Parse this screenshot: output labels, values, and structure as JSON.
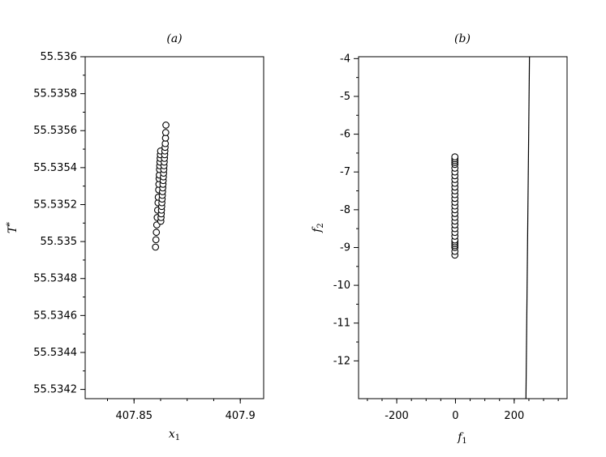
{
  "chart_data": [
    {
      "type": "scatter",
      "title": "(a)",
      "xlabel": "x",
      "xlabel_subscript": "1",
      "ylabel": "T",
      "ylabel_superscript": "*",
      "xlim": [
        407.827,
        407.911
      ],
      "ylim": [
        55.53415,
        55.536
      ],
      "xticks": [
        407.85,
        407.9
      ],
      "xtick_labels": [
        "407.85",
        "407.9"
      ],
      "yticks": [
        55.5342,
        55.5344,
        55.5346,
        55.5348,
        55.535,
        55.5352,
        55.5354,
        55.5356,
        55.5358,
        55.536
      ],
      "ytick_labels": [
        "55.5342",
        "55.5344",
        "55.5346",
        "55.5348",
        "55.535",
        "55.5352",
        "55.5354",
        "55.5356",
        "55.5358",
        "55.536"
      ],
      "series": [
        {
          "marker": "open-circle",
          "x": [
            407.8601,
            407.8603,
            407.8605,
            407.8607,
            407.8609,
            407.8611,
            407.8613,
            407.8614,
            407.8616,
            407.8617,
            407.8618,
            407.8619,
            407.862,
            407.8621,
            407.8622,
            407.8623,
            407.8624,
            407.8625,
            407.8626,
            407.8627,
            407.8628,
            407.8629,
            407.863,
            407.8631,
            407.8632,
            407.8633,
            407.8634,
            407.8635,
            407.8636,
            407.8637,
            407.8638,
            407.8639,
            407.864,
            407.8641,
            407.8642,
            407.8643,
            407.8644,
            407.8645,
            407.8646,
            407.8647,
            407.8648,
            407.8649,
            407.865
          ],
          "y": [
            55.53497,
            55.53501,
            55.53505,
            55.53509,
            55.53513,
            55.53517,
            55.53521,
            55.53524,
            55.53528,
            55.53531,
            55.53534,
            55.53536,
            55.53539,
            55.53541,
            55.53543,
            55.53545,
            55.53547,
            55.53549,
            55.53511,
            55.53513,
            55.53515,
            55.53517,
            55.53519,
            55.53521,
            55.53523,
            55.53525,
            55.53527,
            55.53529,
            55.53531,
            55.53533,
            55.53535,
            55.53537,
            55.53539,
            55.53541,
            55.53543,
            55.53545,
            55.53547,
            55.53549,
            55.53551,
            55.53553,
            55.53556,
            55.53559,
            55.53563
          ]
        }
      ]
    },
    {
      "type": "scatter",
      "title": "(b)",
      "xlabel": "f",
      "xlabel_subscript": "1",
      "ylabel": "f",
      "ylabel_subscript": "2",
      "xlim": [
        -330,
        380
      ],
      "ylim": [
        -13.0,
        -3.95
      ],
      "xticks": [
        -200,
        0,
        200
      ],
      "xtick_labels": [
        "-200",
        "0",
        "200"
      ],
      "yticks": [
        -12,
        -11,
        -10,
        -9,
        -8,
        -7,
        -6,
        -5,
        -4
      ],
      "ytick_labels": [
        "-12",
        "-11",
        "-10",
        "-9",
        "-8",
        "-7",
        "-6",
        "-5",
        "-4"
      ],
      "line": {
        "x": [
          240,
          252
        ],
        "y": [
          -13.0,
          -3.95
        ]
      },
      "series": [
        {
          "marker": "open-circle",
          "x": [
            -2,
            -2,
            -2,
            -2,
            -2,
            -2,
            -2,
            -2,
            -2,
            -2,
            -2,
            -2,
            -2,
            -2,
            -2,
            -2,
            -2,
            -2,
            -2,
            -2,
            -2,
            -2,
            -2,
            -2,
            -2,
            -2,
            -2,
            -2,
            -2,
            -2,
            -2
          ],
          "y": [
            -9.2,
            -9.1,
            -9.0,
            -8.95,
            -8.9,
            -8.85,
            -8.8,
            -8.7,
            -8.6,
            -8.5,
            -8.4,
            -8.3,
            -8.2,
            -8.1,
            -8.0,
            -7.9,
            -7.8,
            -7.7,
            -7.6,
            -7.5,
            -7.4,
            -7.3,
            -7.2,
            -7.1,
            -7.0,
            -6.9,
            -6.8,
            -6.75,
            -6.7,
            -6.65,
            -6.6
          ]
        }
      ]
    }
  ]
}
